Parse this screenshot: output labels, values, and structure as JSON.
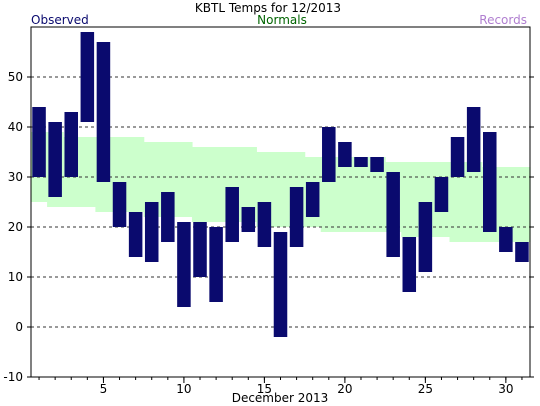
{
  "chart_data": {
    "type": "bar",
    "title": "KBTL Temps for 12/2013",
    "xlabel": "December 2013",
    "ylabel": "",
    "legend": {
      "observed": "Observed",
      "normals": "Normals",
      "records": "Records"
    },
    "ylim": [
      -10,
      60
    ],
    "y_ticks": [
      -10,
      0,
      10,
      20,
      30,
      40,
      50
    ],
    "x_range": [
      1,
      31
    ],
    "x_ticks": [
      5,
      10,
      15,
      20,
      25,
      30
    ],
    "grid": "horizontal dashed",
    "days": [
      1,
      2,
      3,
      4,
      5,
      6,
      7,
      8,
      9,
      10,
      11,
      12,
      13,
      14,
      15,
      16,
      17,
      18,
      19,
      20,
      21,
      22,
      23,
      24,
      25,
      26,
      27,
      28,
      29,
      30,
      31
    ],
    "observed_high": [
      44,
      41,
      43,
      59,
      57,
      29,
      23,
      25,
      27,
      21,
      21,
      20,
      28,
      24,
      25,
      19,
      28,
      29,
      40,
      37,
      34,
      34,
      31,
      18,
      25,
      30,
      38,
      44,
      39,
      20,
      17
    ],
    "observed_low": [
      30,
      26,
      30,
      41,
      29,
      20,
      14,
      13,
      17,
      4,
      10,
      5,
      17,
      19,
      16,
      -2,
      16,
      22,
      29,
      32,
      32,
      31,
      14,
      7,
      11,
      23,
      30,
      31,
      19,
      15,
      13
    ],
    "normal_high": [
      39,
      39,
      38,
      38,
      38,
      38,
      38,
      37,
      37,
      37,
      36,
      36,
      36,
      36,
      35,
      35,
      35,
      34,
      34,
      34,
      34,
      34,
      33,
      33,
      33,
      33,
      33,
      33,
      32,
      32,
      32
    ],
    "normal_low": [
      25,
      24,
      24,
      24,
      23,
      23,
      23,
      22,
      22,
      22,
      21,
      21,
      21,
      21,
      20,
      20,
      20,
      20,
      19,
      19,
      19,
      19,
      19,
      18,
      18,
      18,
      17,
      17,
      17,
      17,
      17
    ],
    "colors": {
      "observed": "#0a0a6e",
      "normals": "#ccffcc",
      "normals_text": "#006400",
      "records": "#b07fd0",
      "grid": "#333333"
    }
  }
}
